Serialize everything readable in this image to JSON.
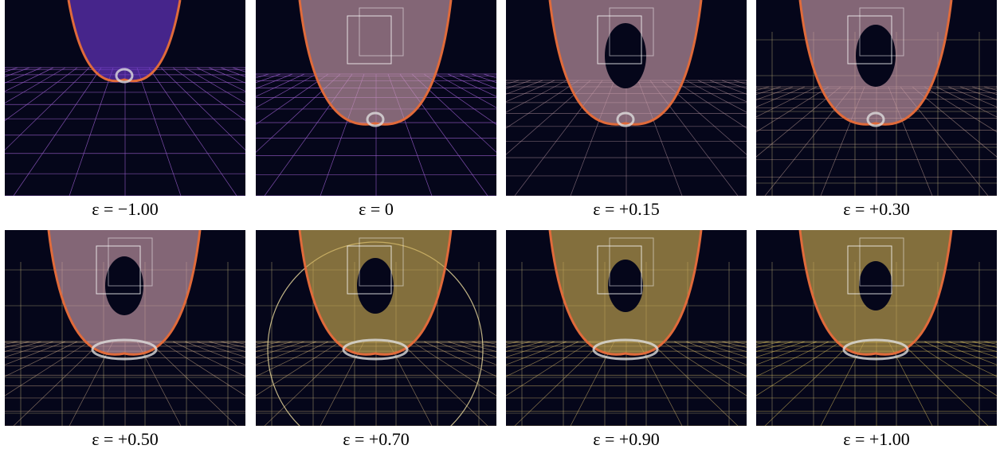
{
  "panels": [
    {
      "caption": "ε = −1.00"
    },
    {
      "caption": "ε = 0"
    },
    {
      "caption": "ε = +0.15"
    },
    {
      "caption": "ε = +0.30"
    },
    {
      "caption": "ε = +0.50"
    },
    {
      "caption": "ε = +0.70"
    },
    {
      "caption": "ε = +0.90"
    },
    {
      "caption": "ε = +1.00"
    }
  ]
}
